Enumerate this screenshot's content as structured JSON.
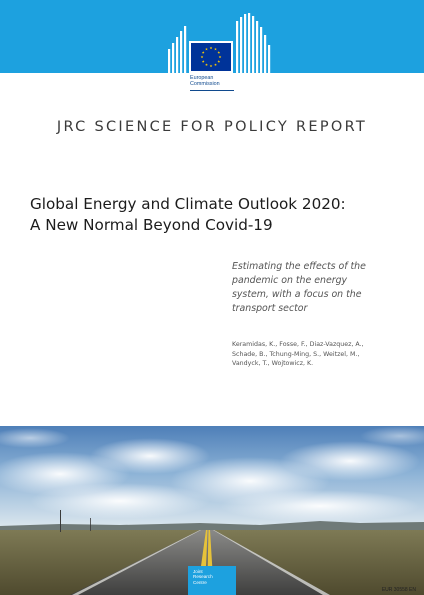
{
  "header": {
    "brand_color": "#1da1df",
    "logo_icon": "european-commission-logo-icon",
    "logo_lines": [
      "European",
      "Commission"
    ]
  },
  "report": {
    "series": "JRC SCIENCE FOR POLICY REPORT",
    "title_lines": [
      "Global Energy and Climate Outlook 2020:",
      "A New Normal Beyond Covid-19"
    ],
    "subtitle_lines": [
      "Estimating the effects of the",
      "pandemic on the energy",
      "system, with a focus on the",
      "transport sector"
    ],
    "author_lines": [
      "Keramidas, K., Fosse, F., Diaz-Vazquez, A.,",
      "Schade, B., Tchung-Ming, S., Weitzel, M.,",
      "Vandyck, T., Wojtowicz, K."
    ]
  },
  "cover_image": {
    "icon": "road-landscape-photo"
  },
  "footer": {
    "jrc_lines": [
      "Joint",
      "Research",
      "Centre"
    ],
    "report_number": "EUR 30558 EN"
  }
}
